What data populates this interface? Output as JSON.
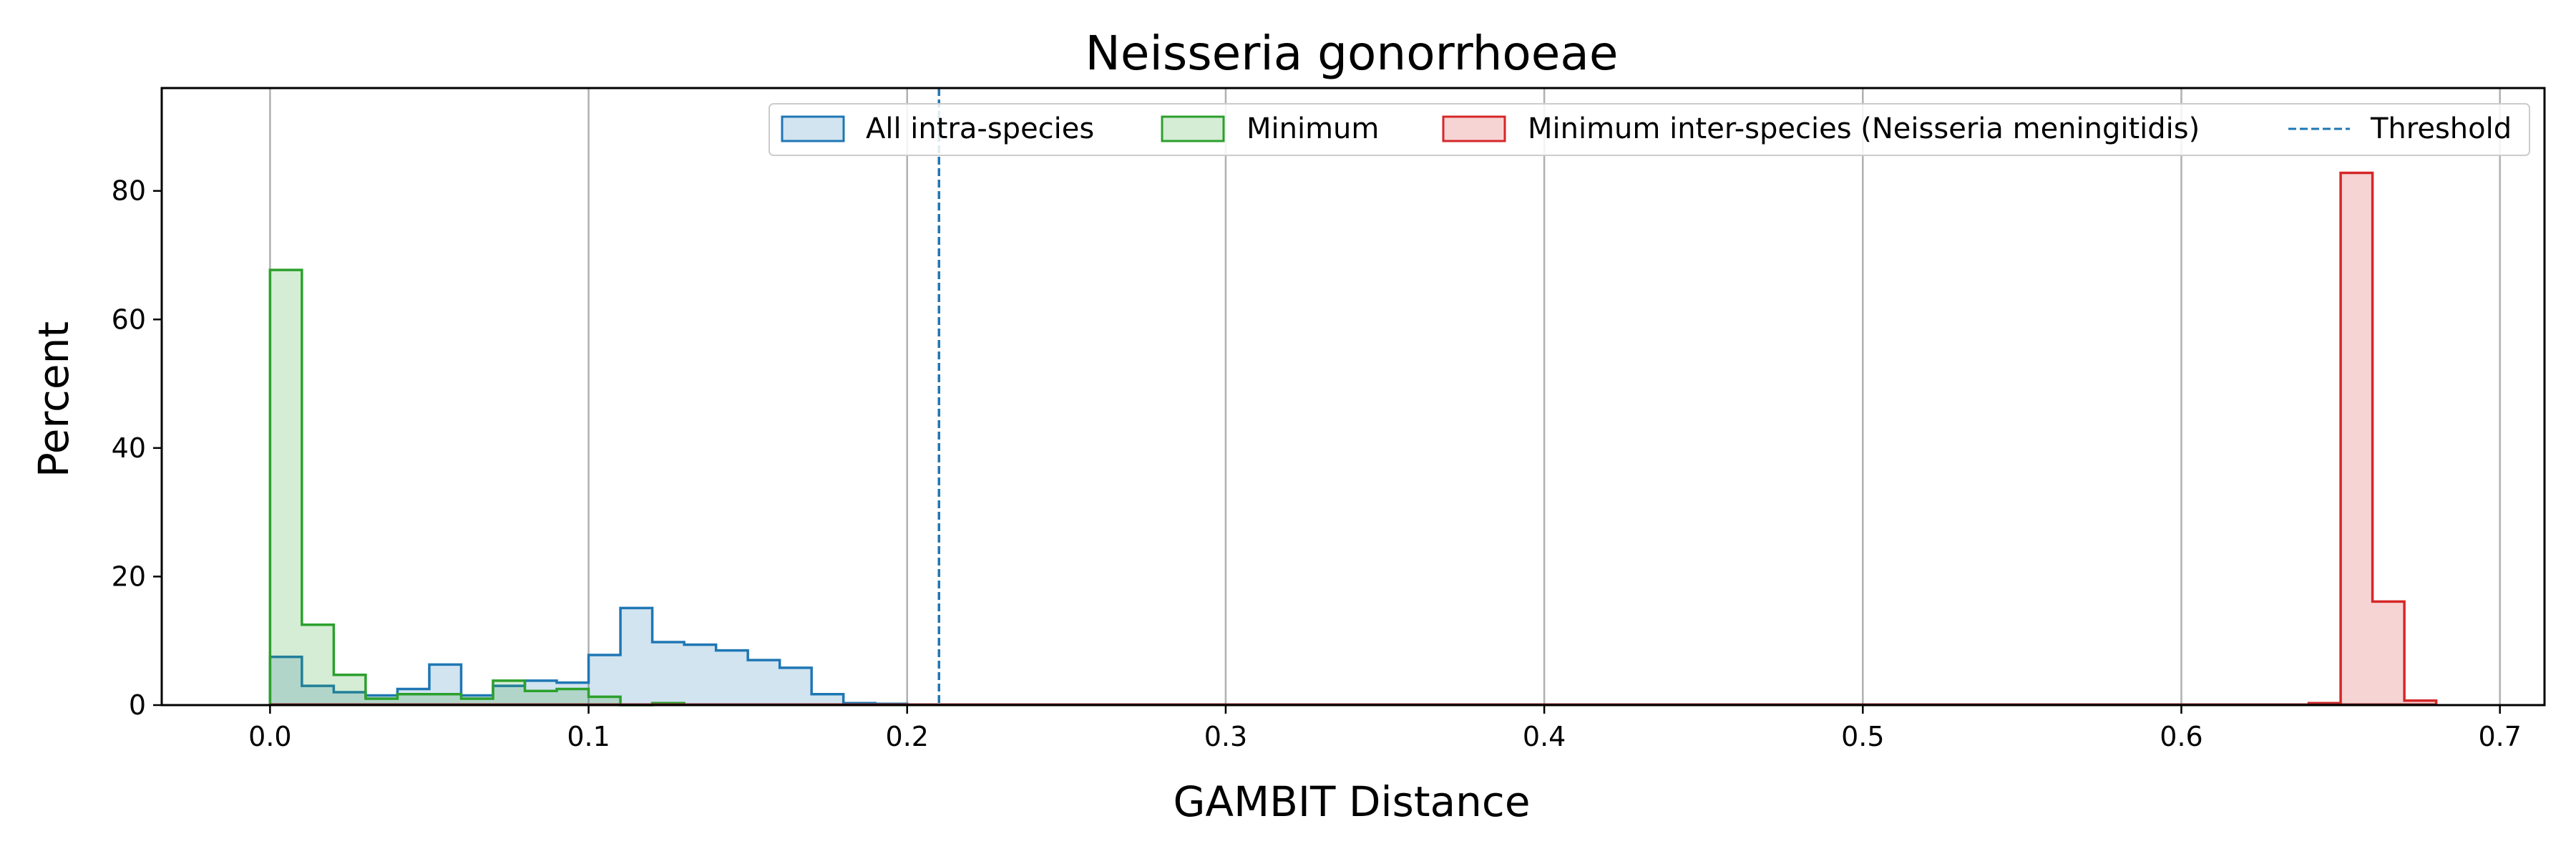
{
  "chart_data": {
    "type": "histogram",
    "title": "Neisseria gonorrhoeae",
    "xlabel": "GAMBIT Distance",
    "ylabel": "Percent",
    "xlim": [
      -0.034,
      0.714
    ],
    "ylim": [
      0,
      96
    ],
    "xticks": [
      0.0,
      0.1,
      0.2,
      0.3,
      0.4,
      0.5,
      0.6,
      0.7
    ],
    "xtick_labels": [
      "0.0",
      "0.1",
      "0.2",
      "0.3",
      "0.4",
      "0.5",
      "0.6",
      "0.7"
    ],
    "yticks": [
      0,
      20,
      40,
      60,
      80
    ],
    "ytick_labels": [
      "0",
      "20",
      "40",
      "60",
      "80"
    ],
    "grid": "vertical",
    "bin_width": 0.01,
    "series": [
      {
        "name": "All intra-species",
        "color": "#1f77b4",
        "bin_start": 0.0,
        "values": [
          7.5,
          3.0,
          2.0,
          1.5,
          2.5,
          6.3,
          1.5,
          3.0,
          3.8,
          3.5,
          7.8,
          15.1,
          9.8,
          9.4,
          8.5,
          7.0,
          5.8,
          1.7,
          0.3,
          0.2
        ]
      },
      {
        "name": "Minimum",
        "color": "#2ca02c",
        "bin_start": 0.0,
        "values": [
          67.7,
          12.5,
          4.7,
          1.0,
          1.7,
          1.7,
          1.0,
          3.8,
          2.2,
          2.5,
          1.3,
          0.0,
          0.3
        ]
      },
      {
        "name": "Minimum inter-species (Neisseria meningitidis)",
        "color": "#d62728",
        "bin_start": 0.64,
        "values": [
          0.3,
          82.8,
          16.1,
          0.7
        ]
      }
    ],
    "threshold": {
      "name": "Threshold",
      "value": 0.21,
      "color": "#1f77b4"
    },
    "baseline_xrange": [
      0.0,
      0.68
    ],
    "legend_placement": "top-right"
  }
}
